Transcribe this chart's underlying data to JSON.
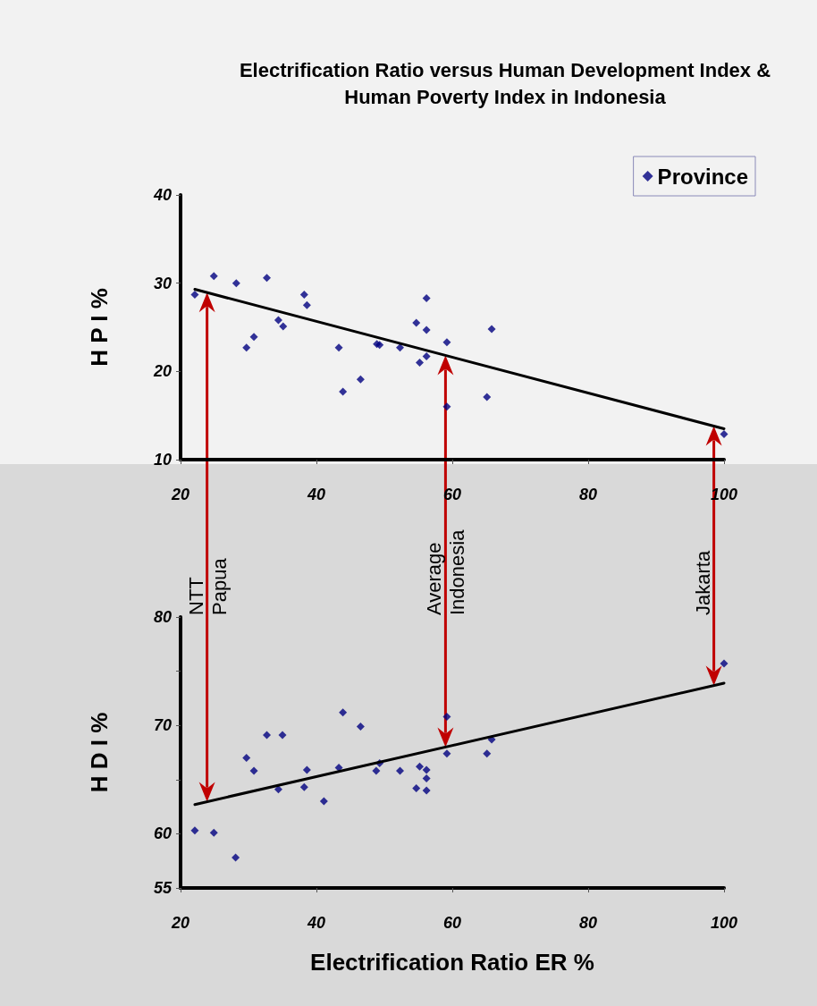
{
  "chart_data": [
    {
      "type": "scatter",
      "title": "Electrification Ratio versus Human Development Index &\nHuman Poverty Index in Indonesia",
      "ylabel": "H P I %",
      "xlim": [
        20,
        100
      ],
      "xticks": [
        20,
        40,
        60,
        80,
        100
      ],
      "ylim": [
        10,
        40
      ],
      "yticks": [
        10,
        20,
        30,
        40
      ],
      "grid": false,
      "legend": "top right",
      "series": [
        {
          "name": "Province",
          "color": "#000080",
          "x": [
            22.1,
            24.9,
            28.2,
            32.7,
            38.2,
            38.6,
            29.7,
            30.8,
            34.4,
            35.1,
            43.3,
            43.9,
            46.5,
            48.9,
            49.3,
            52.3,
            54.7,
            56.2,
            56.2,
            55.2,
            56.2,
            59.2,
            59.2,
            65.8,
            65.1,
            100
          ],
          "values": [
            28.7,
            30.8,
            30.0,
            30.6,
            28.7,
            27.5,
            22.7,
            23.9,
            25.8,
            25.1,
            22.7,
            17.7,
            19.1,
            23.1,
            23.0,
            22.7,
            25.5,
            28.3,
            24.7,
            21.0,
            21.7,
            23.3,
            16.0,
            24.8,
            17.1,
            12.9
          ]
        },
        {
          "type": "line",
          "color": "#000000",
          "x": [
            22.1,
            100
          ],
          "values": [
            29.3,
            13.5
          ]
        }
      ]
    },
    {
      "type": "scatter",
      "xlabel": "Electrification Ratio ER %",
      "ylabel": "H D I %",
      "xlim": [
        20,
        100
      ],
      "xticks": [
        20,
        40,
        60,
        80,
        100
      ],
      "ylim": [
        55,
        80
      ],
      "yticks": [
        55,
        60,
        {
          "value": 65,
          "label": null
        },
        70,
        {
          "value": 75,
          "label": null
        },
        80
      ],
      "grid": false,
      "ref_lines": [
        {
          "axis": "x",
          "value": 23.9,
          "label": "NTT\nPapua",
          "color": "#c00000"
        },
        {
          "axis": "x",
          "value": 59.0,
          "label": "Average\nIndonesia",
          "color": "#c00000"
        },
        {
          "axis": "x",
          "value": 98.5,
          "label": "Jakarta",
          "color": "#c00000"
        }
      ],
      "series": [
        {
          "color": "#000080",
          "x": [
            22.1,
            24.9,
            28.1,
            29.7,
            30.8,
            32.7,
            35.0,
            34.4,
            38.2,
            38.6,
            41.1,
            43.3,
            43.9,
            46.5,
            48.8,
            49.3,
            52.3,
            54.7,
            55.2,
            56.2,
            56.2,
            56.2,
            59.2,
            59.2,
            65.1,
            65.8,
            100
          ],
          "values": [
            60.3,
            60.1,
            57.8,
            67.0,
            65.8,
            69.1,
            69.1,
            64.1,
            64.3,
            65.9,
            63.0,
            66.1,
            71.2,
            69.9,
            65.8,
            66.5,
            65.8,
            64.2,
            66.2,
            65.9,
            65.1,
            64.0,
            70.8,
            67.4,
            67.4,
            68.7,
            75.7
          ]
        },
        {
          "type": "line",
          "color": "#000000",
          "x": [
            22.1,
            100
          ],
          "values": [
            62.7,
            73.9
          ]
        }
      ]
    }
  ]
}
